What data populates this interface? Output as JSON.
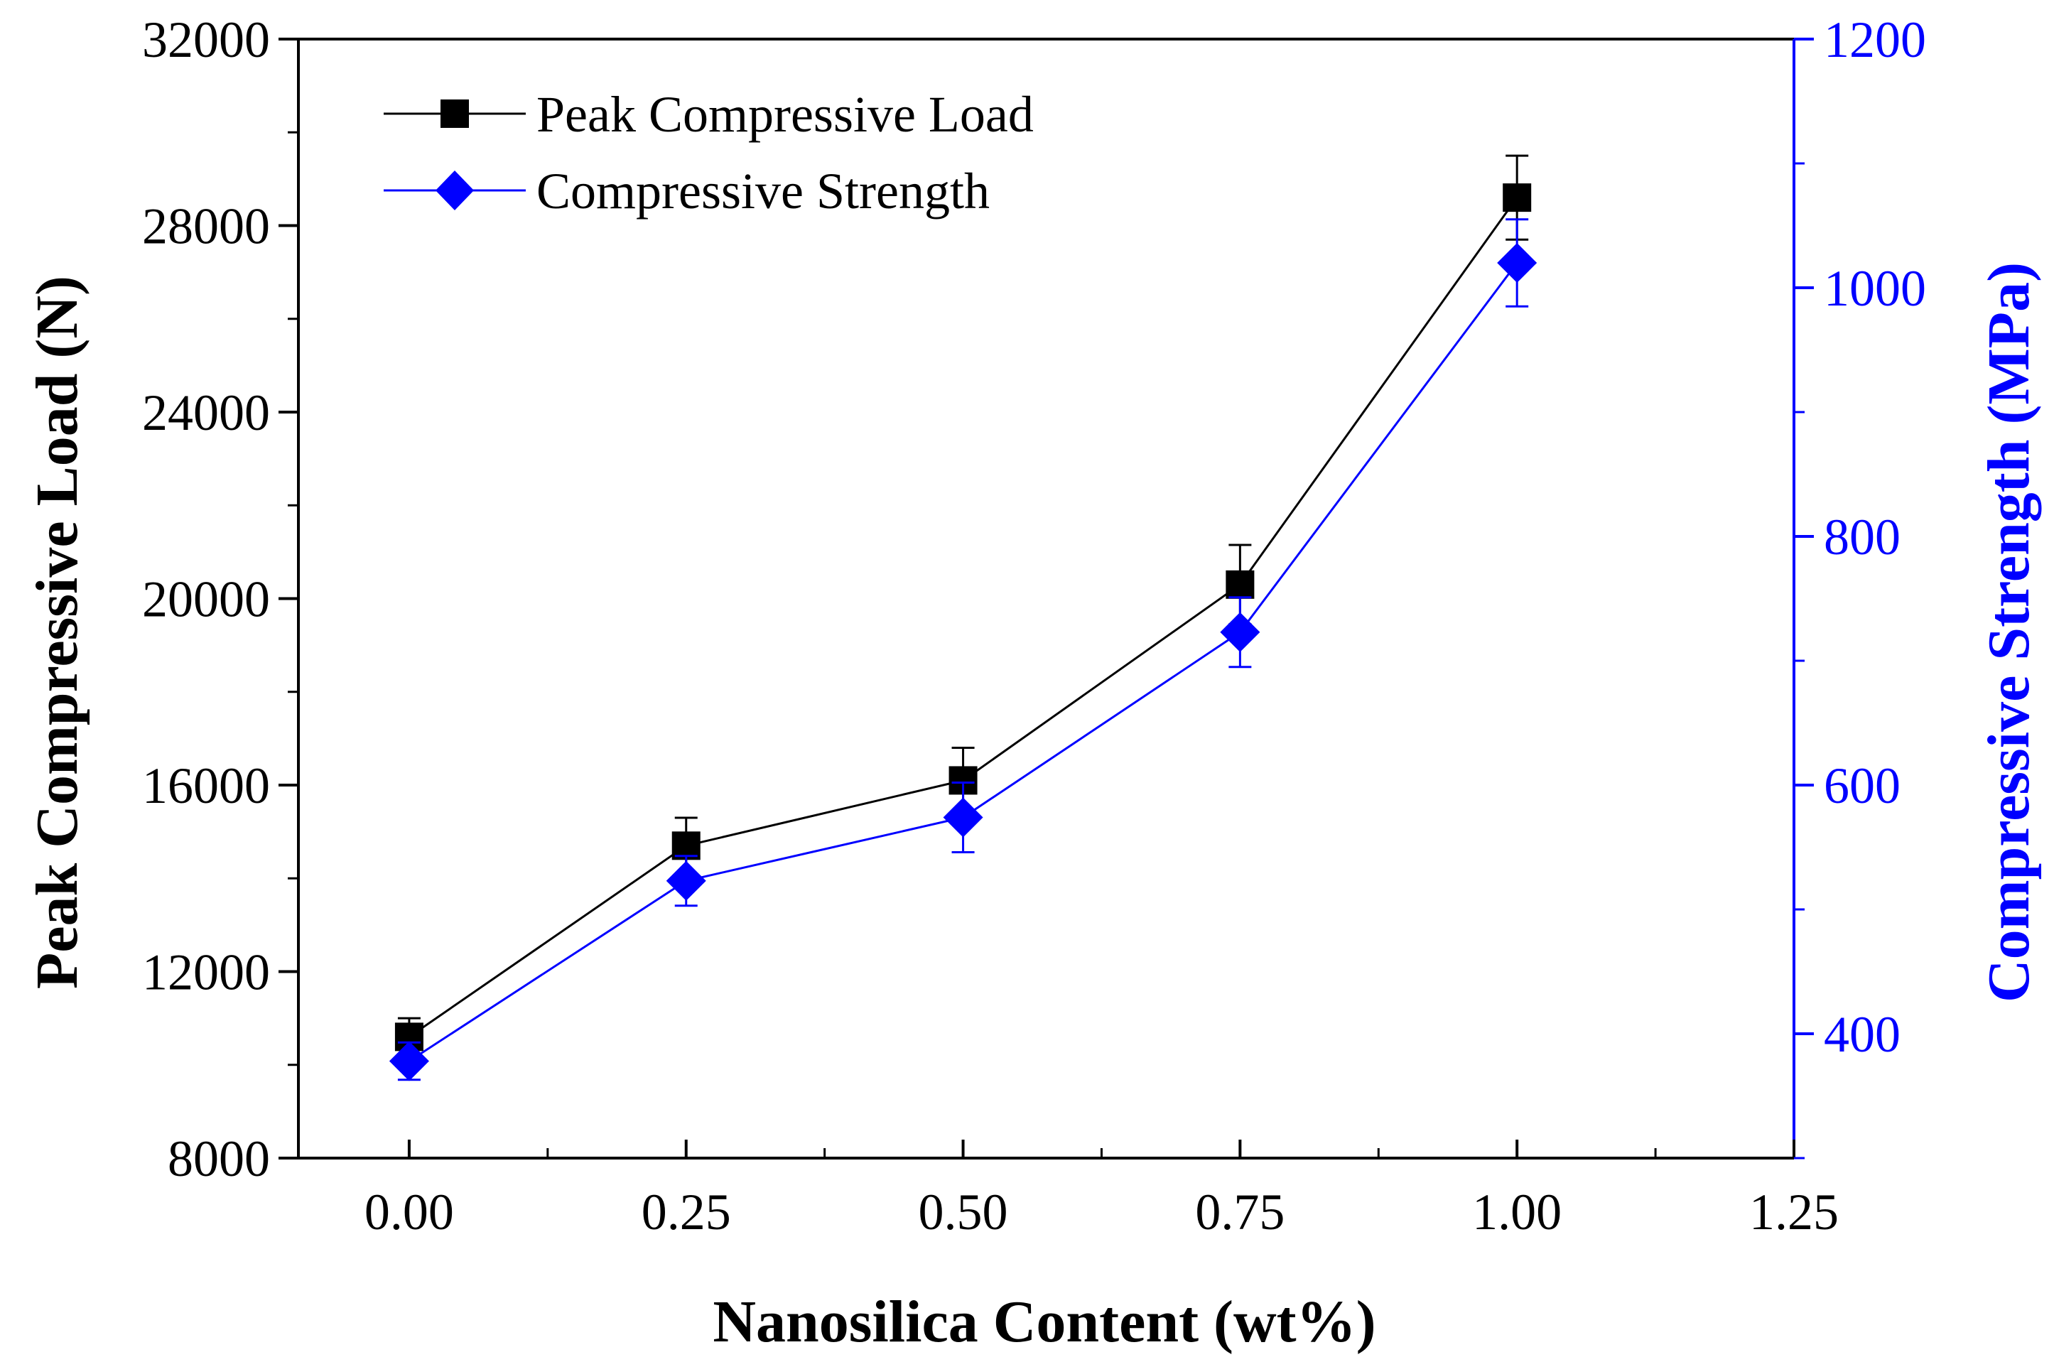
{
  "chart_data": {
    "type": "line",
    "xlabel": "Nanosilica Content (wt%)",
    "ylabel_left": "Peak Compressive Load (N)",
    "ylabel_right": "Compressive Strength (MPa)",
    "xlim": [
      -0.1,
      1.25
    ],
    "ylim_left": [
      8000,
      32000
    ],
    "ylim_right": [
      300,
      1200
    ],
    "x_ticks": [
      "0.00",
      "0.25",
      "0.50",
      "0.75",
      "1.00",
      "1.25"
    ],
    "y_left_ticks": [
      "8000",
      "12000",
      "16000",
      "20000",
      "24000",
      "28000",
      "32000"
    ],
    "y_right_ticks": [
      "400",
      "600",
      "800",
      "1000",
      "1200"
    ],
    "grid": false,
    "legend_position": "top-left",
    "series": [
      {
        "name": "Peak Compressive Load",
        "axis": "left",
        "color": "#000000",
        "marker": "square",
        "x": [
          0,
          0.25,
          0.5,
          0.75,
          1.0
        ],
        "values": [
          10600,
          14700,
          16100,
          20300,
          28600
        ],
        "errors": [
          400,
          600,
          700,
          850,
          900
        ]
      },
      {
        "name": "Compressive Strength",
        "axis": "right",
        "color": "#0000ff",
        "marker": "diamond",
        "x": [
          0,
          0.25,
          0.5,
          0.75,
          1.0
        ],
        "values": [
          378,
          523,
          574,
          723,
          1020
        ],
        "errors": [
          15,
          20,
          28,
          28,
          35
        ]
      }
    ]
  }
}
